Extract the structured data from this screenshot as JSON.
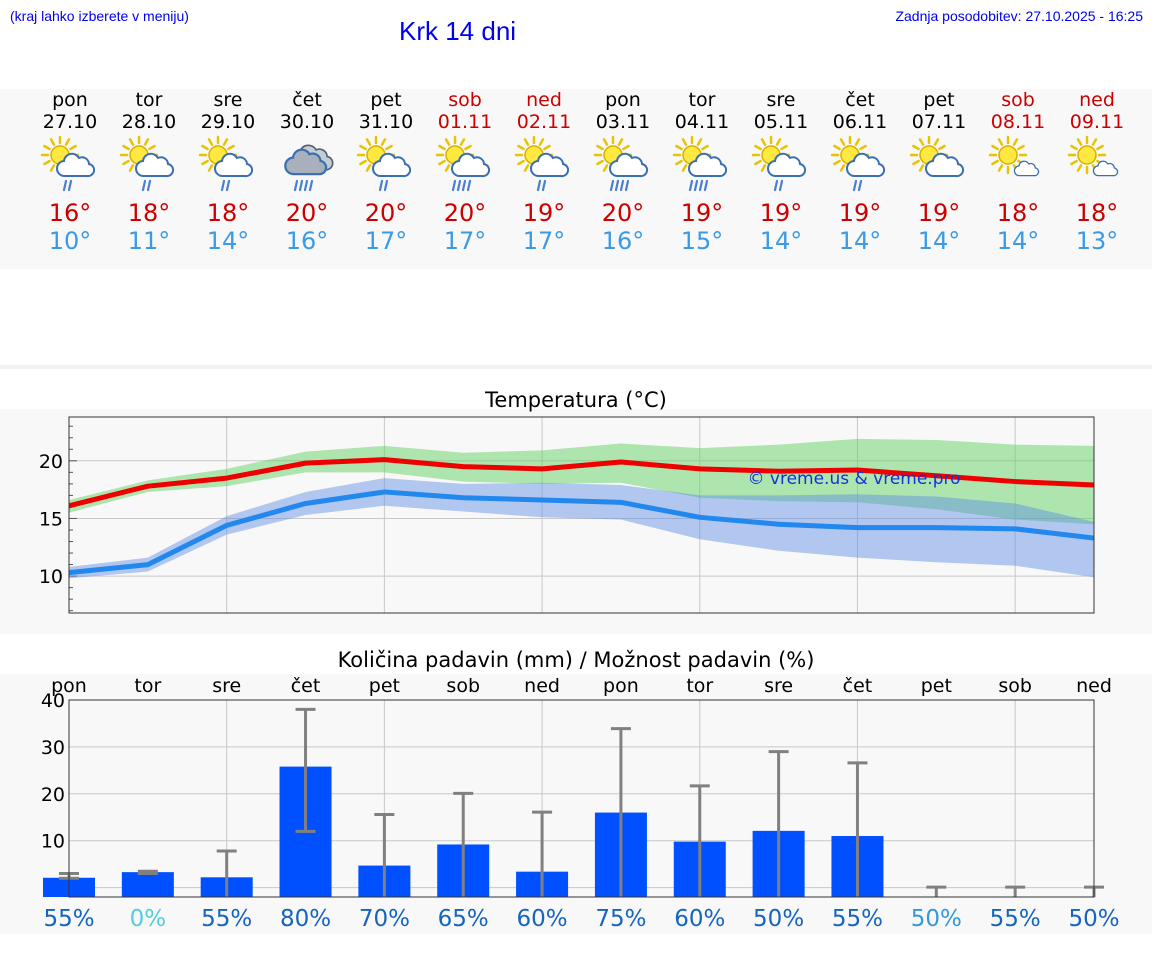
{
  "header": {
    "hint": "(kraj lahko izberete v meniju)",
    "title": "Krk 14 dni",
    "updated": "Zadnja posodobitev: 27.10.2025 - 16:25"
  },
  "colors": {
    "weekend": "#cc0000",
    "max": "#cc0000",
    "min": "#3a9ae6",
    "bar": "#0050ff"
  },
  "days": [
    {
      "name": "pon",
      "date": "27.10",
      "weekend": false,
      "icon": "sun-cloud-rain-icon",
      "tmax": "16°",
      "tmin": "10°"
    },
    {
      "name": "tor",
      "date": "28.10",
      "weekend": false,
      "icon": "sun-cloud-rain-icon",
      "tmax": "18°",
      "tmin": "11°"
    },
    {
      "name": "sre",
      "date": "29.10",
      "weekend": false,
      "icon": "sun-cloud-rain-icon",
      "tmax": "18°",
      "tmin": "14°"
    },
    {
      "name": "čet",
      "date": "30.10",
      "weekend": false,
      "icon": "cloud-heavy-rain-icon",
      "tmax": "20°",
      "tmin": "16°"
    },
    {
      "name": "pet",
      "date": "31.10",
      "weekend": false,
      "icon": "sun-cloud-rain-icon",
      "tmax": "20°",
      "tmin": "17°"
    },
    {
      "name": "sob",
      "date": "01.11",
      "weekend": true,
      "icon": "sun-cloud-heavy-rain-icon",
      "tmax": "20°",
      "tmin": "17°"
    },
    {
      "name": "ned",
      "date": "02.11",
      "weekend": true,
      "icon": "sun-cloud-rain-icon",
      "tmax": "19°",
      "tmin": "17°"
    },
    {
      "name": "pon",
      "date": "03.11",
      "weekend": false,
      "icon": "sun-cloud-heavy-rain-icon",
      "tmax": "20°",
      "tmin": "16°"
    },
    {
      "name": "tor",
      "date": "04.11",
      "weekend": false,
      "icon": "sun-cloud-heavy-rain-icon",
      "tmax": "19°",
      "tmin": "15°"
    },
    {
      "name": "sre",
      "date": "05.11",
      "weekend": false,
      "icon": "sun-cloud-rain-icon",
      "tmax": "19°",
      "tmin": "14°"
    },
    {
      "name": "čet",
      "date": "06.11",
      "weekend": false,
      "icon": "sun-cloud-rain-icon",
      "tmax": "19°",
      "tmin": "14°"
    },
    {
      "name": "pet",
      "date": "07.11",
      "weekend": false,
      "icon": "sun-cloud-icon",
      "tmax": "19°",
      "tmin": "14°"
    },
    {
      "name": "sob",
      "date": "08.11",
      "weekend": true,
      "icon": "sun-small-cloud-icon",
      "tmax": "18°",
      "tmin": "14°"
    },
    {
      "name": "ned",
      "date": "09.11",
      "weekend": true,
      "icon": "sun-small-cloud-icon",
      "tmax": "18°",
      "tmin": "13°"
    }
  ],
  "chart_data": [
    {
      "type": "line",
      "title": "Temperatura (°C)",
      "watermark": "© vreme.us & vreme.pro",
      "ylim": [
        6.8,
        23.8
      ],
      "yticks": [
        10,
        15,
        20
      ],
      "grid": true,
      "x": [
        0,
        1,
        2,
        3,
        4,
        5,
        6,
        7,
        8,
        9,
        10,
        11,
        12,
        13
      ],
      "series": [
        {
          "name": "max",
          "values": [
            16.1,
            17.8,
            18.5,
            19.8,
            20.1,
            19.5,
            19.3,
            19.9,
            19.3,
            19.1,
            19.2,
            18.7,
            18.2,
            17.9
          ],
          "band_low": [
            15.5,
            17.3,
            17.8,
            19.0,
            19.0,
            18.2,
            18.0,
            18.1,
            16.8,
            16.5,
            16.4,
            15.8,
            14.9,
            14.5
          ],
          "band_high": [
            16.6,
            18.3,
            19.3,
            20.8,
            21.3,
            20.7,
            20.9,
            21.5,
            21.1,
            21.4,
            21.9,
            21.8,
            21.4,
            21.3
          ]
        },
        {
          "name": "min",
          "values": [
            10.3,
            11.0,
            14.4,
            16.3,
            17.3,
            16.8,
            16.6,
            16.4,
            15.1,
            14.5,
            14.2,
            14.2,
            14.1,
            13.3
          ],
          "band_low": [
            9.8,
            10.4,
            13.6,
            15.3,
            16.1,
            15.6,
            15.1,
            14.9,
            13.2,
            12.2,
            11.6,
            11.2,
            10.9,
            9.9
          ],
          "band_high": [
            10.8,
            11.6,
            15.2,
            17.3,
            18.5,
            18.0,
            18.1,
            17.9,
            17.0,
            17.0,
            17.1,
            16.9,
            16.3,
            14.7
          ]
        }
      ]
    },
    {
      "type": "bar",
      "title": "Količina padavin (mm) / Možnost padavin (%)",
      "categories": [
        "pon",
        "tor",
        "sre",
        "čet",
        "pet",
        "sob",
        "ned",
        "pon",
        "tor",
        "sre",
        "čet",
        "pet",
        "sob",
        "ned"
      ],
      "ylim": [
        -2,
        40
      ],
      "yticks": [
        0,
        10,
        20,
        30,
        40
      ],
      "values": [
        2.1,
        3.3,
        2.2,
        25.8,
        4.7,
        9.2,
        3.4,
        16.0,
        9.8,
        12.1,
        11.0,
        0,
        0,
        0
      ],
      "err_low": [
        2.0,
        3.0,
        0,
        12.0,
        0,
        0,
        0,
        0,
        0,
        0,
        0,
        0,
        0,
        0
      ],
      "err_high": [
        3.0,
        3.5,
        7.8,
        38.0,
        15.6,
        20.1,
        16.1,
        33.9,
        21.7,
        29.0,
        26.6,
        0.1,
        0.1,
        0.1
      ],
      "probability": [
        "55%",
        "0%",
        "55%",
        "80%",
        "70%",
        "65%",
        "60%",
        "75%",
        "60%",
        "50%",
        "55%",
        "50%",
        "55%",
        "50%"
      ],
      "probability_color": [
        "#1565c0",
        "#55ccdd",
        "#1565c0",
        "#1565c0",
        "#1565c0",
        "#1565c0",
        "#1565c0",
        "#1565c0",
        "#1565c0",
        "#1565c0",
        "#1565c0",
        "#3399dd",
        "#1565c0",
        "#1565c0"
      ]
    }
  ]
}
